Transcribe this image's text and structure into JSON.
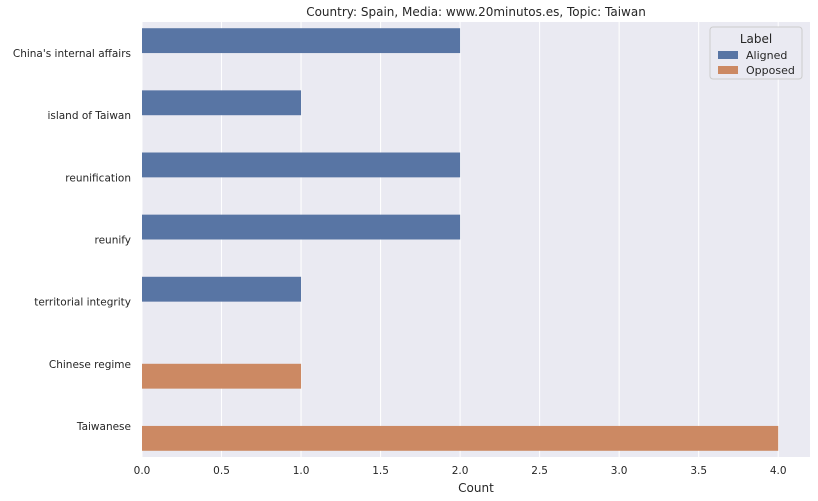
{
  "chart_data": {
    "type": "bar",
    "orientation": "horizontal",
    "title": "Country: Spain, Media: www.20minutos.es, Topic: Taiwan",
    "xlabel": "Count",
    "ylabel": "",
    "xlim": [
      0,
      4.2
    ],
    "x_ticks": [
      "0.0",
      "0.5",
      "1.0",
      "1.5",
      "2.0",
      "2.5",
      "3.0",
      "3.5",
      "4.0"
    ],
    "grid": true,
    "categories": [
      "China's internal affairs",
      "island of Taiwan",
      "reunification",
      "reunify",
      "territorial integrity",
      "Chinese regime",
      "Taiwanese"
    ],
    "series": [
      {
        "name": "Aligned",
        "color": "#5875a4",
        "values": [
          2,
          1,
          2,
          2,
          1,
          0,
          0
        ]
      },
      {
        "name": "Opposed",
        "color": "#cc8963",
        "values": [
          0,
          0,
          0,
          0,
          0,
          1,
          4
        ]
      }
    ],
    "legend": {
      "title": "Label",
      "placement": "top-right"
    }
  }
}
